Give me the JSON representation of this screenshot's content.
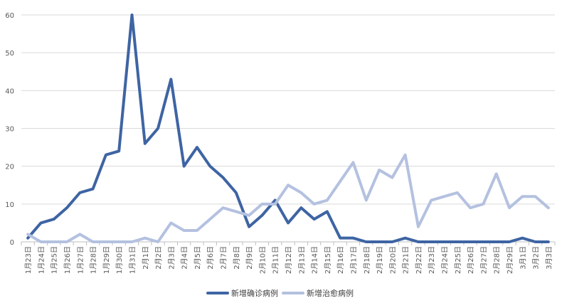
{
  "chart_data": {
    "type": "line",
    "title": "",
    "xlabel": "",
    "ylabel": "",
    "ylim": [
      0,
      60
    ],
    "yticks": [
      "0",
      "10",
      "20",
      "30",
      "40",
      "50",
      "60"
    ],
    "grid": true,
    "legend_position": "bottom",
    "categories": [
      "1月23日",
      "1月24日",
      "1月25日",
      "1月26日",
      "1月27日",
      "1月28日",
      "1月29日",
      "1月30日",
      "1月31日",
      "2月1日",
      "2月2日",
      "2月3日",
      "2月4日",
      "2月5日",
      "2月6日",
      "2月7日",
      "2月8日",
      "2月9日",
      "2月10日",
      "2月11日",
      "2月12日",
      "2月13日",
      "2月14日",
      "2月15日",
      "2月16日",
      "2月17日",
      "2月18日",
      "2月19日",
      "2月20日",
      "2月21日",
      "2月22日",
      "2月23日",
      "2月24日",
      "2月25日",
      "2月26日",
      "2月27日",
      "2月28日",
      "2月29日",
      "3月1日",
      "3月2日",
      "3月3日"
    ],
    "series": [
      {
        "name": "新增确诊病例",
        "color": "#3e64a3",
        "values": [
          1,
          5,
          6,
          9,
          13,
          14,
          23,
          24,
          60,
          26,
          30,
          43,
          20,
          25,
          20,
          17,
          13,
          4,
          7,
          11,
          5,
          9,
          6,
          8,
          1,
          1,
          0,
          0,
          0,
          1,
          0,
          0,
          0,
          0,
          0,
          0,
          0,
          0,
          1,
          0,
          0
        ]
      },
      {
        "name": "新增治愈病例",
        "color": "#b4c1e0",
        "values": [
          2,
          0,
          0,
          0,
          2,
          0,
          0,
          0,
          0,
          1,
          0,
          5,
          3,
          3,
          6,
          9,
          8,
          7,
          10,
          10,
          15,
          13,
          10,
          11,
          16,
          21,
          11,
          19,
          17,
          23,
          4,
          11,
          12,
          13,
          9,
          10,
          18,
          9,
          12,
          12,
          9
        ]
      }
    ]
  }
}
